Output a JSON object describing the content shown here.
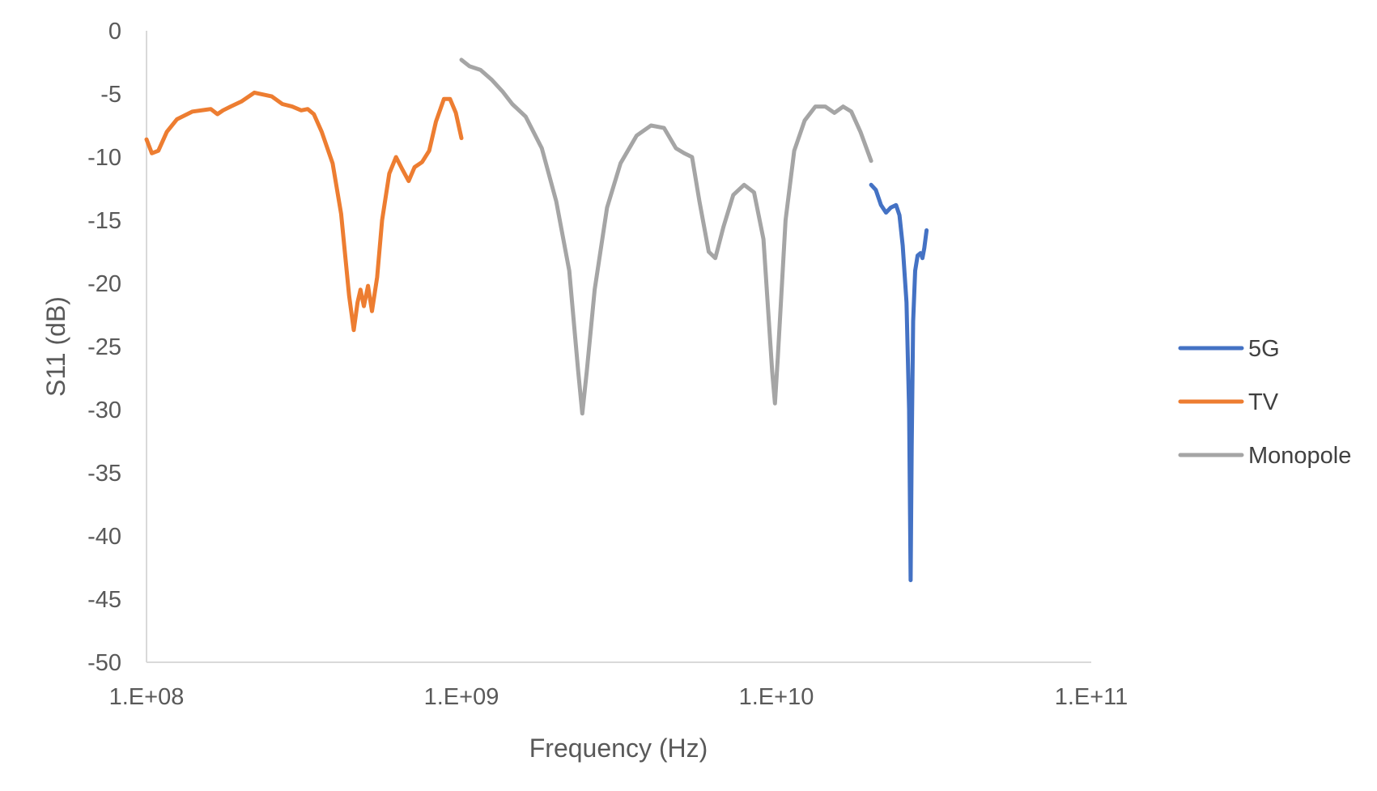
{
  "chart_data": {
    "type": "line",
    "title": "",
    "xlabel": "Frequency (Hz)",
    "ylabel": "S11 (dB)",
    "x_scale": "log",
    "xlim": [
      100000000,
      100000000000
    ],
    "ylim": [
      -50,
      0
    ],
    "x_ticks": [
      100000000,
      1000000000,
      10000000000,
      100000000000
    ],
    "x_tick_labels": [
      "1.E+08",
      "1.E+09",
      "1.E+10",
      "1.E+11"
    ],
    "y_ticks": [
      0,
      -5,
      -10,
      -15,
      -20,
      -25,
      -30,
      -35,
      -40,
      -45,
      -50
    ],
    "y_tick_labels": [
      "0",
      "-5",
      "-10",
      "-15",
      "-20",
      "-25",
      "-30",
      "-35",
      "-40",
      "-45",
      "-50"
    ],
    "grid": false,
    "legend_position": "right",
    "series": [
      {
        "name": "5G",
        "color": "#4472c4",
        "points": [
          [
            20000000000,
            -12.2
          ],
          [
            20700000000,
            -12.6
          ],
          [
            21500000000,
            -13.8
          ],
          [
            22300000000,
            -14.4
          ],
          [
            23100000000,
            -14.0
          ],
          [
            24000000000,
            -13.8
          ],
          [
            24600000000,
            -14.6
          ],
          [
            25200000000,
            -17.0
          ],
          [
            25900000000,
            -21.5
          ],
          [
            26400000000,
            -30.0
          ],
          [
            26700000000,
            -43.5
          ],
          [
            26900000000,
            -33.0
          ],
          [
            27200000000,
            -23.0
          ],
          [
            27600000000,
            -19.0
          ],
          [
            28100000000,
            -17.8
          ],
          [
            28700000000,
            -17.6
          ],
          [
            29100000000,
            -18.0
          ],
          [
            29500000000,
            -17.2
          ],
          [
            30000000000,
            -15.8
          ]
        ]
      },
      {
        "name": "TV",
        "color": "#ed7d31",
        "points": [
          [
            100000000,
            -8.6
          ],
          [
            104000000,
            -9.7
          ],
          [
            109000000,
            -9.5
          ],
          [
            116000000,
            -8.0
          ],
          [
            125000000,
            -7.0
          ],
          [
            140000000,
            -6.4
          ],
          [
            160000000,
            -6.2
          ],
          [
            168000000,
            -6.6
          ],
          [
            175000000,
            -6.3
          ],
          [
            185000000,
            -6.0
          ],
          [
            200000000,
            -5.6
          ],
          [
            220000000,
            -4.9
          ],
          [
            250000000,
            -5.2
          ],
          [
            270000000,
            -5.8
          ],
          [
            290000000,
            -6.0
          ],
          [
            310000000,
            -6.3
          ],
          [
            325000000,
            -6.2
          ],
          [
            340000000,
            -6.6
          ],
          [
            360000000,
            -8.0
          ],
          [
            390000000,
            -10.5
          ],
          [
            415000000,
            -14.5
          ],
          [
            440000000,
            -21.0
          ],
          [
            455000000,
            -23.7
          ],
          [
            468000000,
            -21.5
          ],
          [
            478000000,
            -20.5
          ],
          [
            490000000,
            -21.8
          ],
          [
            505000000,
            -20.2
          ],
          [
            520000000,
            -22.2
          ],
          [
            540000000,
            -19.5
          ],
          [
            560000000,
            -15.0
          ],
          [
            590000000,
            -11.3
          ],
          [
            620000000,
            -10.0
          ],
          [
            650000000,
            -11.0
          ],
          [
            680000000,
            -11.9
          ],
          [
            710000000,
            -10.8
          ],
          [
            750000000,
            -10.4
          ],
          [
            790000000,
            -9.5
          ],
          [
            830000000,
            -7.2
          ],
          [
            880000000,
            -5.4
          ],
          [
            920000000,
            -5.4
          ],
          [
            960000000,
            -6.5
          ],
          [
            1000000000,
            -8.5
          ]
        ]
      },
      {
        "name": "Monopole",
        "color": "#a5a5a5",
        "points": [
          [
            1000000000,
            -2.3
          ],
          [
            1060000000,
            -2.8
          ],
          [
            1150000000,
            -3.1
          ],
          [
            1250000000,
            -3.9
          ],
          [
            1350000000,
            -4.8
          ],
          [
            1450000000,
            -5.8
          ],
          [
            1600000000,
            -6.8
          ],
          [
            1800000000,
            -9.3
          ],
          [
            2000000000,
            -13.5
          ],
          [
            2200000000,
            -19.0
          ],
          [
            2350000000,
            -27.0
          ],
          [
            2420000000,
            -30.3
          ],
          [
            2500000000,
            -27.0
          ],
          [
            2650000000,
            -20.5
          ],
          [
            2900000000,
            -14.0
          ],
          [
            3200000000,
            -10.5
          ],
          [
            3600000000,
            -8.3
          ],
          [
            4000000000,
            -7.5
          ],
          [
            4400000000,
            -7.7
          ],
          [
            4800000000,
            -9.3
          ],
          [
            5100000000,
            -9.7
          ],
          [
            5400000000,
            -10.0
          ],
          [
            5700000000,
            -13.5
          ],
          [
            6100000000,
            -17.5
          ],
          [
            6400000000,
            -18.0
          ],
          [
            6800000000,
            -15.5
          ],
          [
            7300000000,
            -13.0
          ],
          [
            7900000000,
            -12.2
          ],
          [
            8500000000,
            -12.8
          ],
          [
            9100000000,
            -16.5
          ],
          [
            9700000000,
            -27.0
          ],
          [
            9900000000,
            -29.5
          ],
          [
            10100000000,
            -26.0
          ],
          [
            10700000000,
            -15.0
          ],
          [
            11400000000,
            -9.5
          ],
          [
            12300000000,
            -7.1
          ],
          [
            13300000000,
            -6.0
          ],
          [
            14300000000,
            -6.0
          ],
          [
            15300000000,
            -6.5
          ],
          [
            16300000000,
            -6.0
          ],
          [
            17300000000,
            -6.4
          ],
          [
            18500000000,
            -8.0
          ],
          [
            20000000000,
            -10.3
          ]
        ]
      }
    ]
  }
}
